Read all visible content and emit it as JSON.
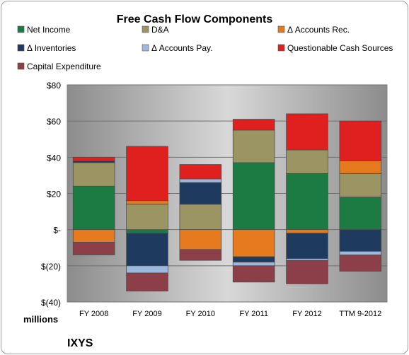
{
  "chart_data": {
    "type": "bar",
    "stacked": true,
    "title": "Free Cash Flow Components",
    "categories": [
      "FY 2008",
      "FY 2009",
      "FY 2010",
      "FY 2011",
      "FY 2012",
      "TTM 9-2012"
    ],
    "ylim": [
      -40,
      80
    ],
    "yticks": [
      80,
      60,
      40,
      20,
      0,
      -20,
      -40
    ],
    "ytick_labels": [
      "$80",
      "$60",
      "$40",
      "$20",
      "$-",
      "$(20)",
      "$(40)"
    ],
    "unit_label": "millions",
    "company": "IXYS",
    "grid": true,
    "legend_position": "top",
    "series": [
      {
        "name": "Net Income",
        "color": "#1c7a43",
        "values": [
          24,
          -2,
          0,
          37,
          31,
          18
        ]
      },
      {
        "name": "D&A",
        "color": "#9b9563",
        "values": [
          13,
          14,
          14,
          18,
          13,
          13
        ]
      },
      {
        "name": "Δ Accounts Rec.",
        "color": "#e57a1e",
        "values": [
          -7,
          2,
          -11,
          -15,
          -2,
          7
        ]
      },
      {
        "name": "Δ Inventories",
        "color": "#1e3a5f",
        "values": [
          1,
          -18,
          12,
          -3,
          -14,
          -12
        ]
      },
      {
        "name": "Δ Accounts Pay.",
        "color": "#9cb8dc",
        "values": [
          0,
          -4,
          2,
          -2,
          -1,
          -2
        ]
      },
      {
        "name": "Questionable Cash Sources",
        "color": "#e0201e",
        "values": [
          2,
          30,
          8,
          6,
          20,
          22
        ]
      },
      {
        "name": "Capital Expenditure",
        "color": "#8c3f48",
        "values": [
          -7,
          -10,
          -6,
          -9,
          -13,
          -9
        ]
      }
    ]
  }
}
